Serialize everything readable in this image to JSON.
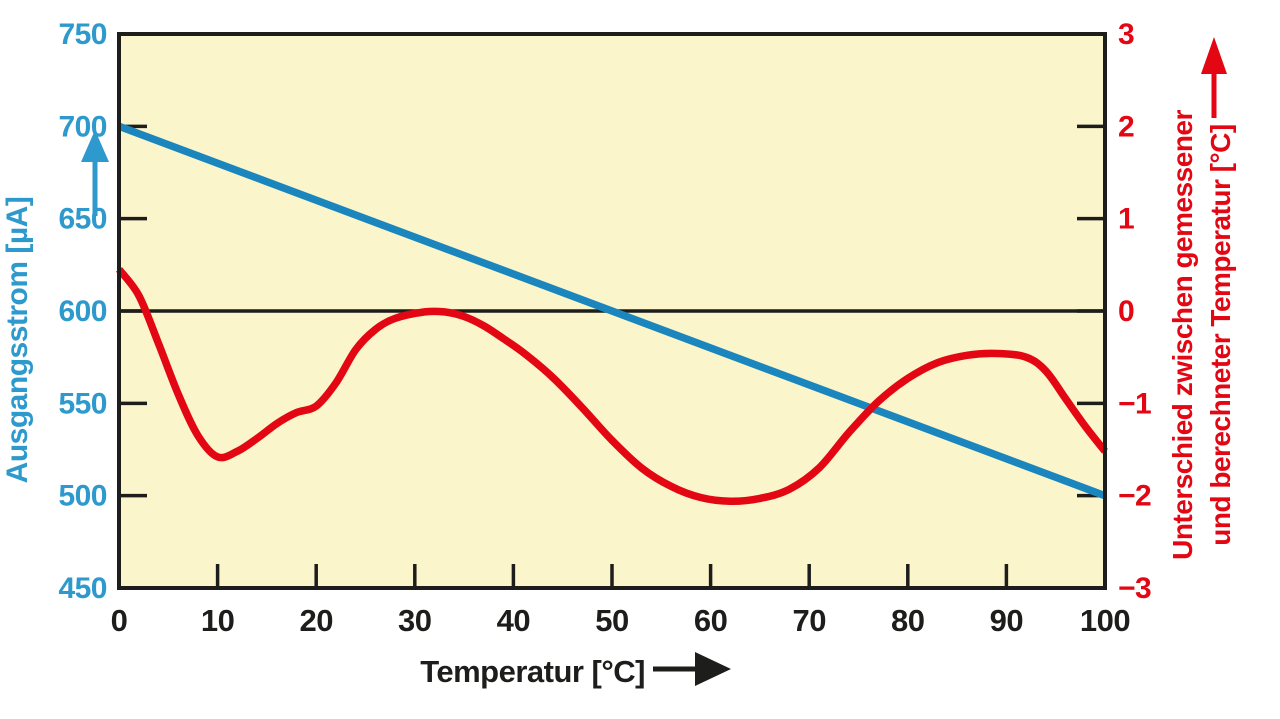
{
  "figure": {
    "background": "#ffffff"
  },
  "chart_data": {
    "type": "line",
    "title": "",
    "grid": false,
    "legend": false,
    "colors": {
      "plot_background": "#fbf5cb",
      "frame": "#1d1d1b",
      "blue_line": "#1b86bd",
      "blue_text": "#2e99cc",
      "red": "#e30613",
      "black_text": "#1d1d1b"
    },
    "x_axis": {
      "label": "Temperatur [°C]",
      "range": [
        0,
        100
      ],
      "ticks": [
        {
          "v": 0,
          "label": "0"
        },
        {
          "v": 10,
          "label": "10"
        },
        {
          "v": 20,
          "label": "20"
        },
        {
          "v": 30,
          "label": "30"
        },
        {
          "v": 40,
          "label": "40"
        },
        {
          "v": 50,
          "label": "50"
        },
        {
          "v": 60,
          "label": "60"
        },
        {
          "v": 70,
          "label": "70"
        },
        {
          "v": 80,
          "label": "80"
        },
        {
          "v": 90,
          "label": "90"
        },
        {
          "v": 100,
          "label": "100"
        }
      ]
    },
    "y_axis_left": {
      "label": "Ausgangsstrom [µA]",
      "range": [
        450,
        750
      ],
      "ticks": [
        {
          "v": 750,
          "label": "750"
        },
        {
          "v": 700,
          "label": "700"
        },
        {
          "v": 650,
          "label": "650"
        },
        {
          "v": 600,
          "label": "600"
        },
        {
          "v": 550,
          "label": "550"
        },
        {
          "v": 500,
          "label": "500"
        },
        {
          "v": 450,
          "label": "450"
        }
      ]
    },
    "y_axis_right": {
      "label_line1": "Unterschied zwischen gemessener",
      "label_line2": "und berechneter Temperatur [°C]",
      "range": [
        -3,
        3
      ],
      "ticks": [
        {
          "v": 3,
          "label": "3"
        },
        {
          "v": 2,
          "label": "2"
        },
        {
          "v": 1,
          "label": "1"
        },
        {
          "v": 0,
          "label": "0"
        },
        {
          "v": -1,
          "label": "−1"
        },
        {
          "v": -2,
          "label": "−2"
        },
        {
          "v": -3,
          "label": "−3"
        }
      ]
    },
    "reference_line": {
      "axis": "right",
      "value": 0
    },
    "series": [
      {
        "name": "Ausgangsstrom",
        "axis": "left",
        "color": "#1b86bd",
        "smooth": false,
        "points": [
          [
            0,
            700
          ],
          [
            100,
            500
          ]
        ]
      },
      {
        "name": "Unterschied gemessene/berechnete Temperatur",
        "axis": "right",
        "color": "#e30613",
        "smooth": true,
        "points": [
          [
            0,
            0.45
          ],
          [
            2,
            0.17
          ],
          [
            4,
            -0.35
          ],
          [
            6,
            -0.9
          ],
          [
            8,
            -1.35
          ],
          [
            10,
            -1.58
          ],
          [
            12,
            -1.52
          ],
          [
            14,
            -1.38
          ],
          [
            16,
            -1.22
          ],
          [
            18,
            -1.1
          ],
          [
            20,
            -1.03
          ],
          [
            22,
            -0.78
          ],
          [
            24,
            -0.42
          ],
          [
            26,
            -0.2
          ],
          [
            28,
            -0.08
          ],
          [
            31,
            -0.01
          ],
          [
            33,
            -0.01
          ],
          [
            35,
            -0.06
          ],
          [
            37,
            -0.16
          ],
          [
            39,
            -0.3
          ],
          [
            41,
            -0.45
          ],
          [
            44,
            -0.72
          ],
          [
            47,
            -1.05
          ],
          [
            50,
            -1.4
          ],
          [
            53,
            -1.7
          ],
          [
            56,
            -1.9
          ],
          [
            59,
            -2.02
          ],
          [
            62,
            -2.06
          ],
          [
            65,
            -2.03
          ],
          [
            68,
            -1.93
          ],
          [
            71,
            -1.7
          ],
          [
            74,
            -1.32
          ],
          [
            77,
            -0.98
          ],
          [
            80,
            -0.73
          ],
          [
            83,
            -0.56
          ],
          [
            86,
            -0.48
          ],
          [
            89,
            -0.46
          ],
          [
            92,
            -0.5
          ],
          [
            94,
            -0.65
          ],
          [
            96,
            -0.95
          ],
          [
            98,
            -1.25
          ],
          [
            100,
            -1.52
          ]
        ]
      }
    ]
  }
}
